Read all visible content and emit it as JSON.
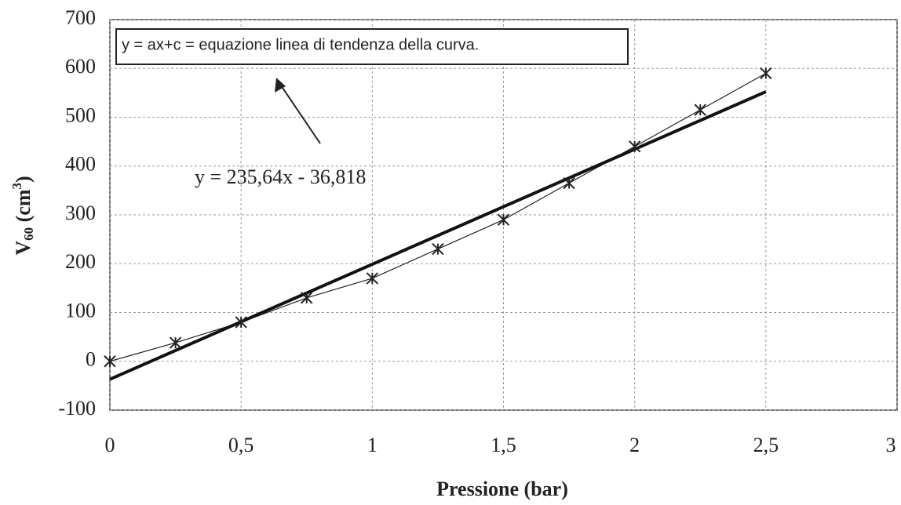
{
  "chart_data": {
    "type": "line",
    "x_label": "Pressione (bar)",
    "y_label": {
      "main": "V",
      "sub": "60",
      "rest": " (cm",
      "sup": "3",
      "end": ")"
    },
    "annotation": "y = ax+c = equazione linea di tendenza della curva.",
    "trendline": {
      "label": "y = 235,64x - 36,818",
      "slope": 235.64,
      "intercept": -36.818,
      "color": "#111111"
    },
    "x": [
      0,
      0.25,
      0.5,
      0.75,
      1,
      1.25,
      1.5,
      1.75,
      2,
      2.25,
      2.5
    ],
    "series": [
      {
        "color": "#222222",
        "values": [
          0,
          38,
          80,
          130,
          170,
          230,
          290,
          365,
          440,
          515,
          590
        ]
      }
    ],
    "xlim": [
      0,
      3
    ],
    "xticks": [
      0,
      {
        "value": 0.5,
        "label": "0,5"
      },
      1,
      {
        "value": 1.5,
        "label": "1,5"
      },
      2,
      {
        "value": 2.5,
        "label": "2,5"
      },
      3
    ],
    "ylim": [
      -100,
      700
    ],
    "yticks": [
      -100,
      0,
      100,
      200,
      300,
      400,
      500,
      600,
      700
    ],
    "grid": true
  }
}
